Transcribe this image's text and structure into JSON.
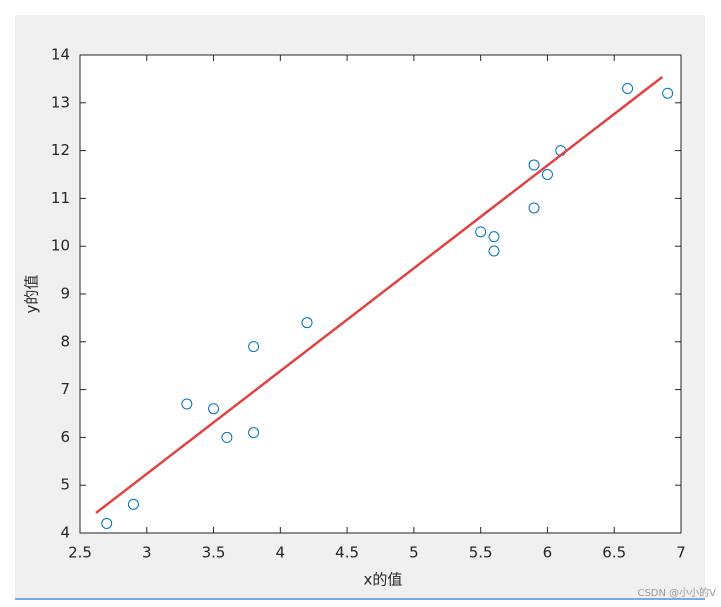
{
  "chart_data": {
    "type": "scatter",
    "xlabel": "x的值",
    "ylabel": "y的值",
    "xlim": [
      2.5,
      7
    ],
    "ylim": [
      4,
      14
    ],
    "xticks": [
      2.5,
      3,
      3.5,
      4,
      4.5,
      5,
      5.5,
      6,
      6.5,
      7
    ],
    "yticks": [
      4,
      5,
      6,
      7,
      8,
      9,
      10,
      11,
      12,
      13,
      14
    ],
    "grid": false,
    "series": [
      {
        "type": "scatter",
        "color": "#0072bd",
        "x": [
          2.7,
          2.9,
          3.3,
          3.5,
          3.6,
          3.8,
          3.8,
          4.2,
          5.5,
          5.6,
          5.6,
          5.9,
          5.9,
          6.0,
          6.1,
          6.6,
          6.9
        ],
        "values": [
          4.2,
          4.6,
          6.7,
          6.6,
          6.0,
          7.9,
          6.1,
          8.4,
          10.3,
          10.2,
          9.9,
          11.7,
          10.8,
          11.5,
          12.0,
          13.3,
          13.2
        ]
      },
      {
        "type": "line",
        "color": "#e04343",
        "x": [
          2.62,
          6.86
        ],
        "values": [
          4.42,
          13.54
        ]
      }
    ],
    "watermark": "CSDN @小小的V"
  }
}
